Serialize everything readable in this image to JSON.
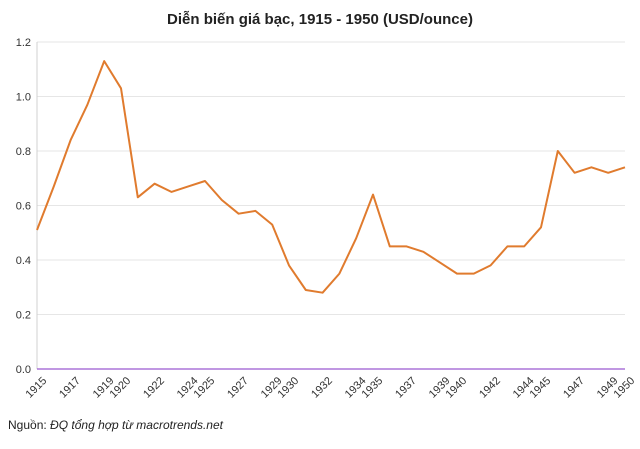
{
  "chart_data": {
    "type": "line",
    "title": "Diễn biến giá bạc, 1915 - 1950 (USD/ounce)",
    "xlabel": "",
    "ylabel": "",
    "ylim": [
      0,
      1.2
    ],
    "yticks": [
      "0.0",
      "0.2",
      "0.4",
      "0.6",
      "0.8",
      "1.0",
      "1.2"
    ],
    "xlim": [
      1915,
      1950
    ],
    "xticks": [
      1915,
      1917,
      1919,
      1920,
      1922,
      1924,
      1925,
      1927,
      1929,
      1930,
      1932,
      1934,
      1935,
      1937,
      1939,
      1940,
      1942,
      1944,
      1945,
      1947,
      1949,
      1950
    ],
    "grid": true,
    "colors": {
      "line": "#E07B2E",
      "grid": "#e6e6e6",
      "baseline": "#9b59d0"
    },
    "series": [
      {
        "values": [
          [
            1915,
            0.51
          ],
          [
            1916,
            0.67
          ],
          [
            1917,
            0.84
          ],
          [
            1918,
            0.97
          ],
          [
            1919,
            1.13
          ],
          [
            1920,
            1.03
          ],
          [
            1921,
            0.63
          ],
          [
            1922,
            0.68
          ],
          [
            1923,
            0.65
          ],
          [
            1924,
            0.67
          ],
          [
            1925,
            0.69
          ],
          [
            1926,
            0.62
          ],
          [
            1927,
            0.57
          ],
          [
            1928,
            0.58
          ],
          [
            1929,
            0.53
          ],
          [
            1930,
            0.38
          ],
          [
            1931,
            0.29
          ],
          [
            1932,
            0.28
          ],
          [
            1933,
            0.35
          ],
          [
            1934,
            0.48
          ],
          [
            1935,
            0.64
          ],
          [
            1936,
            0.45
          ],
          [
            1937,
            0.45
          ],
          [
            1938,
            0.43
          ],
          [
            1939,
            0.39
          ],
          [
            1940,
            0.35
          ],
          [
            1941,
            0.35
          ],
          [
            1942,
            0.38
          ],
          [
            1943,
            0.45
          ],
          [
            1944,
            0.45
          ],
          [
            1945,
            0.52
          ],
          [
            1946,
            0.8
          ],
          [
            1947,
            0.72
          ],
          [
            1948,
            0.74
          ],
          [
            1949,
            0.72
          ],
          [
            1950,
            0.74
          ]
        ]
      }
    ]
  },
  "source": {
    "label": "Nguồn:",
    "text": "ĐQ tổng hợp từ macrotrends.net"
  }
}
